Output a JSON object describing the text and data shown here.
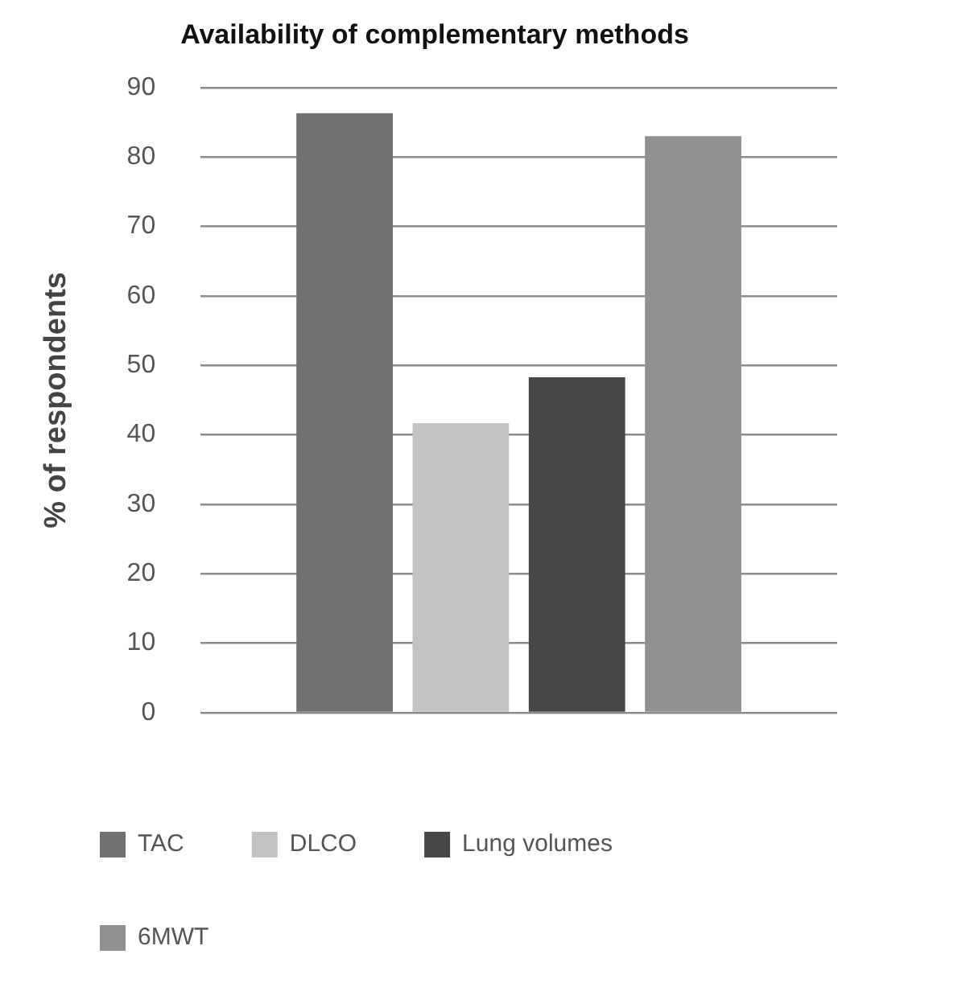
{
  "chart_data": {
    "type": "bar",
    "title": "Availability of complementary methods",
    "ylabel": "% of respondents",
    "categories": [
      null
    ],
    "series": [
      {
        "name": "TAC",
        "color": "#717171",
        "values": [
          86.3
        ]
      },
      {
        "name": "DLCO",
        "color": "#c2c2c2",
        "values": [
          41.7
        ]
      },
      {
        "name": "Lung volumes",
        "color": "#474747",
        "values": [
          48.3
        ]
      },
      {
        "name": "6MWT",
        "color": "#919191",
        "values": [
          83.0
        ]
      }
    ],
    "ylim": [
      0,
      90
    ],
    "yticks": [
      0,
      10,
      20,
      30,
      40,
      50,
      60,
      70,
      80,
      90
    ],
    "grid": "y",
    "legend": "bottom"
  }
}
